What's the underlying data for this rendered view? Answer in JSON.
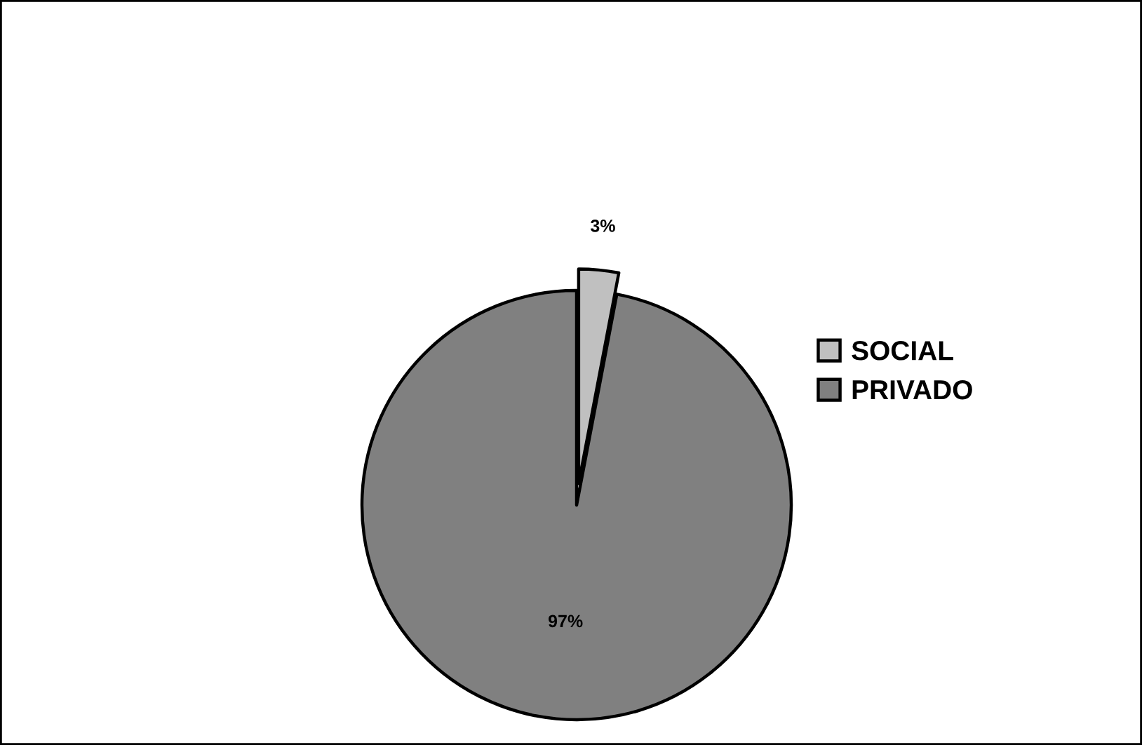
{
  "chart_data": {
    "type": "pie",
    "categories": [
      "SOCIAL",
      "PRIVADO"
    ],
    "values": [
      3,
      97
    ],
    "colors": [
      "#c0c0c0",
      "#808080"
    ],
    "value_labels": [
      "3%",
      "97%"
    ],
    "legend": "right"
  }
}
